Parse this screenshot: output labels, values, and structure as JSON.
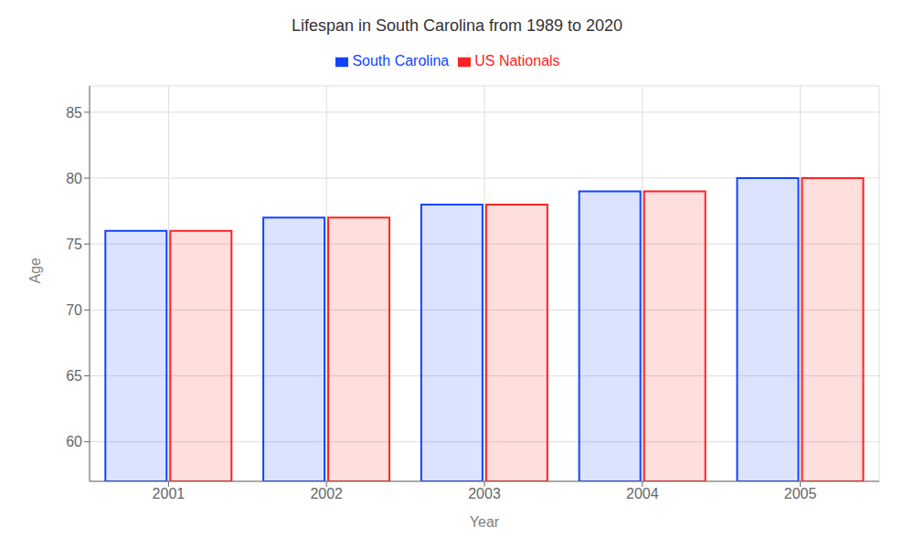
{
  "chart_data": {
    "type": "bar",
    "title": "Lifespan in South Carolina from 1989 to 2020",
    "x_label": "Year",
    "y_label": "Age",
    "categories": [
      "2001",
      "2002",
      "2003",
      "2004",
      "2005"
    ],
    "series": [
      {
        "name": "South Carolina",
        "color": "#1144ff",
        "values": [
          76.0,
          77.0,
          78.0,
          79.0,
          80.0
        ]
      },
      {
        "name": "US Nationals",
        "color": "#ff2222",
        "values": [
          76.0,
          77.0,
          78.0,
          79.0,
          80.0
        ]
      }
    ],
    "ylim": [
      57,
      87
    ],
    "yticks": [
      60,
      65,
      70,
      75,
      80,
      85
    ],
    "grid": true,
    "legend": "top"
  }
}
